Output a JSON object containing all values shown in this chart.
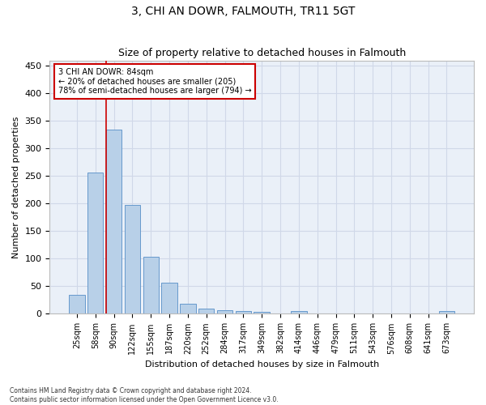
{
  "title": "3, CHI AN DOWR, FALMOUTH, TR11 5GT",
  "subtitle": "Size of property relative to detached houses in Falmouth",
  "xlabel": "Distribution of detached houses by size in Falmouth",
  "ylabel": "Number of detached properties",
  "footnote1": "Contains HM Land Registry data © Crown copyright and database right 2024.",
  "footnote2": "Contains public sector information licensed under the Open Government Licence v3.0.",
  "bar_color": "#b8d0e8",
  "bar_edge_color": "#6699cc",
  "grid_color": "#d0d8e8",
  "bg_color": "#eaf0f8",
  "annotation_box_color": "#cc0000",
  "vline_color": "#cc0000",
  "categories": [
    "25sqm",
    "58sqm",
    "90sqm",
    "122sqm",
    "155sqm",
    "187sqm",
    "220sqm",
    "252sqm",
    "284sqm",
    "317sqm",
    "349sqm",
    "382sqm",
    "414sqm",
    "446sqm",
    "479sqm",
    "511sqm",
    "543sqm",
    "576sqm",
    "608sqm",
    "641sqm",
    "673sqm"
  ],
  "values": [
    35,
    256,
    335,
    197,
    104,
    57,
    19,
    10,
    6,
    5,
    3,
    0,
    5,
    0,
    0,
    0,
    0,
    0,
    0,
    0,
    5
  ],
  "ylim": [
    0,
    460
  ],
  "yticks": [
    0,
    50,
    100,
    150,
    200,
    250,
    300,
    350,
    400,
    450
  ],
  "vline_x_index": 2,
  "annotation_text": "3 CHI AN DOWR: 84sqm\n← 20% of detached houses are smaller (205)\n78% of semi-detached houses are larger (794) →",
  "title_fontsize": 10,
  "subtitle_fontsize": 9,
  "ylabel_fontsize": 8,
  "xlabel_fontsize": 8,
  "tick_fontsize": 7,
  "annot_fontsize": 7
}
